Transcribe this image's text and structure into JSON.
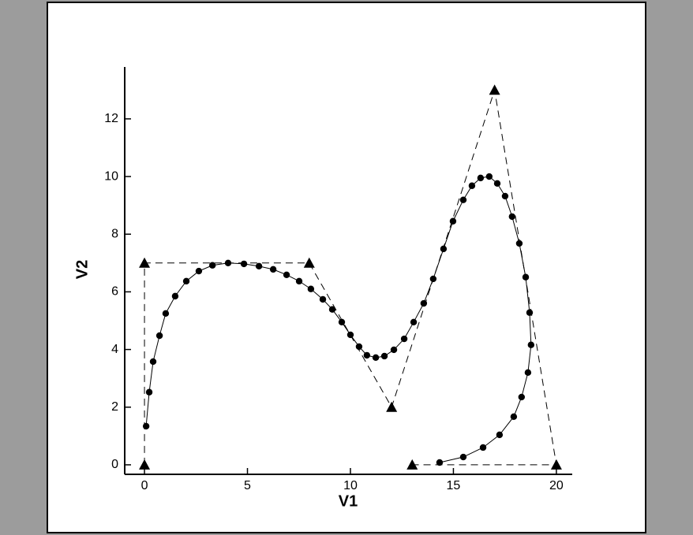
{
  "chart_data": {
    "type": "line",
    "x_label": "V1",
    "y_label": "V2",
    "xlim": [
      -0.96,
      20.77
    ],
    "ylim": [
      -0.33,
      13.8
    ],
    "xticks": [
      0,
      5,
      10,
      15,
      20
    ],
    "yticks": [
      0,
      2,
      4,
      6,
      8,
      10,
      12
    ],
    "series": [
      {
        "color": "#000000",
        "dashed": true,
        "marker": "triangle",
        "x": [
          0,
          0,
          8,
          12,
          17,
          20,
          13
        ],
        "values": [
          0,
          7,
          7,
          2,
          13,
          0,
          0
        ]
      },
      {
        "color": "#000000",
        "dashed": false,
        "marker": "circle",
        "x": [
          0.08,
          0.23,
          0.42,
          0.73,
          1.03,
          1.49,
          2.03,
          2.64,
          3.3,
          4.06,
          4.83,
          5.56,
          6.25,
          6.9,
          7.51,
          8.08,
          8.66,
          9.12,
          9.58,
          10.0,
          10.42,
          10.8,
          11.23,
          11.65,
          12.11,
          12.61,
          13.07,
          13.56,
          14.02,
          14.52,
          14.98,
          15.48,
          15.9,
          16.32,
          16.74,
          17.13,
          17.51,
          17.85,
          18.2,
          18.51,
          18.7,
          18.77,
          18.62,
          18.31,
          17.93,
          17.24,
          16.44,
          15.48,
          14.33
        ],
        "values": [
          1.34,
          2.52,
          3.58,
          4.48,
          5.25,
          5.85,
          6.37,
          6.72,
          6.92,
          7.0,
          6.97,
          6.89,
          6.78,
          6.59,
          6.37,
          6.1,
          5.74,
          5.39,
          4.95,
          4.51,
          4.1,
          3.8,
          3.72,
          3.77,
          3.99,
          4.37,
          4.95,
          5.6,
          6.45,
          7.49,
          8.45,
          9.19,
          9.68,
          9.95,
          10.0,
          9.76,
          9.32,
          8.61,
          7.68,
          6.51,
          5.28,
          4.16,
          3.2,
          2.35,
          1.67,
          1.04,
          0.6,
          0.27,
          0.08
        ]
      }
    ]
  }
}
